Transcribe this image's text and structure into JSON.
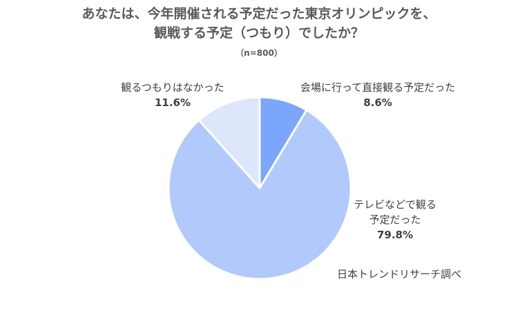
{
  "chart_data": {
    "type": "pie",
    "title_lines": [
      "あなたは、今年開催される予定だった東京オリンピックを、",
      "観戦する予定（つもり）でしたか？"
    ],
    "subtitle": "（n=800）",
    "slices": [
      {
        "label_lines": [
          "会場に行って直接観る予定だった"
        ],
        "value": 8.6,
        "value_label": "8.6%",
        "color": "#7aa7fb"
      },
      {
        "label_lines": [
          "テレビなどで観る",
          "予定だった"
        ],
        "value": 79.8,
        "value_label": "79.8%",
        "color": "#b1c9fb"
      },
      {
        "label_lines": [
          "観るつもりはなかった"
        ],
        "value": 11.6,
        "value_label": "11.6%",
        "color": "#dde7fb"
      }
    ]
  },
  "source": "日本トレンドリサーチ調べ"
}
